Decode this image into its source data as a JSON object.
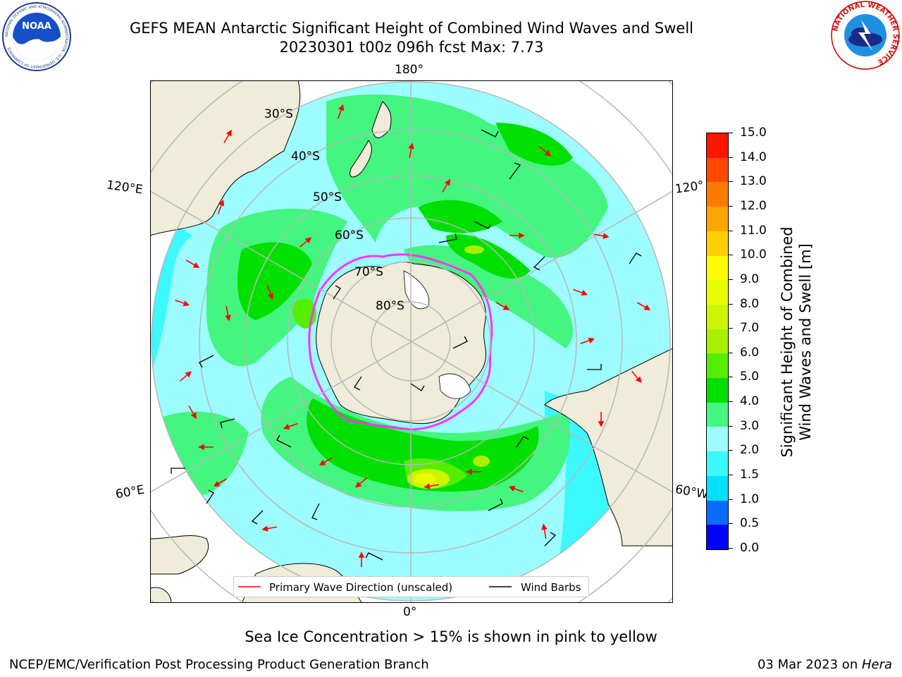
{
  "header": {
    "title_line1": "GEFS MEAN Antarctic Significant Height of Combined Wind Waves and Swell",
    "title_line2": "20230301 t00z 096h fcst   Max: 7.73",
    "noaa_logo_text": "NOAA",
    "noaa_ring_text": "NATIONAL OCEANIC AND ATMOSPHERIC ADMINISTRATION · U.S. DEPARTMENT OF COMMERCE",
    "nws_ring_text": "NATIONAL WEATHER SERVICE"
  },
  "map": {
    "projection": "south-polar-stereographic",
    "lon_labels": {
      "top": "180°",
      "bottom": "0°",
      "left_upper": "120°E",
      "left_lower": "60°E",
      "right_upper": "120°",
      "right_lower": "60°W"
    },
    "lat_labels": [
      "30°S",
      "40°S",
      "50°S",
      "60°S",
      "70°S",
      "80°S"
    ],
    "legend": {
      "wave_label": "Primary Wave Direction (unscaled)",
      "wind_label": "Wind Barbs",
      "wave_color": "#ff0000",
      "wind_color": "#000000"
    },
    "colors": {
      "land": "#efecda",
      "ice_edge": "#ff33ff",
      "grid": "#b8b8b8",
      "ice_sheet": "#ffffff"
    }
  },
  "colorbar": {
    "label_line1": "Significant Height of Combined",
    "label_line2": "Wind Waves and Swell [m]",
    "ticks": [
      "0.0",
      "0.5",
      "1.0",
      "1.5",
      "2.0",
      "3.0",
      "4.0",
      "5.0",
      "6.0",
      "7.0",
      "8.0",
      "9.0",
      "10.0",
      "11.0",
      "12.0",
      "13.0",
      "14.0",
      "15.0"
    ],
    "colors": [
      "#0000ff",
      "#0a6cff",
      "#00e0ff",
      "#3cf8ff",
      "#9cfcff",
      "#44f580",
      "#00e000",
      "#55ee00",
      "#a8f000",
      "#cbf500",
      "#e8fc00",
      "#ffff00",
      "#ffd000",
      "#ffa500",
      "#ff7a00",
      "#ff4a00",
      "#ff1400"
    ]
  },
  "footer": {
    "note": "Sea Ice Concentration > 15% is shown in pink to yellow",
    "branch": "NCEP/EMC/Verification Post Processing Product Generation Branch",
    "date_prefix": "03 Mar 2023 on ",
    "machine": "Hera"
  }
}
